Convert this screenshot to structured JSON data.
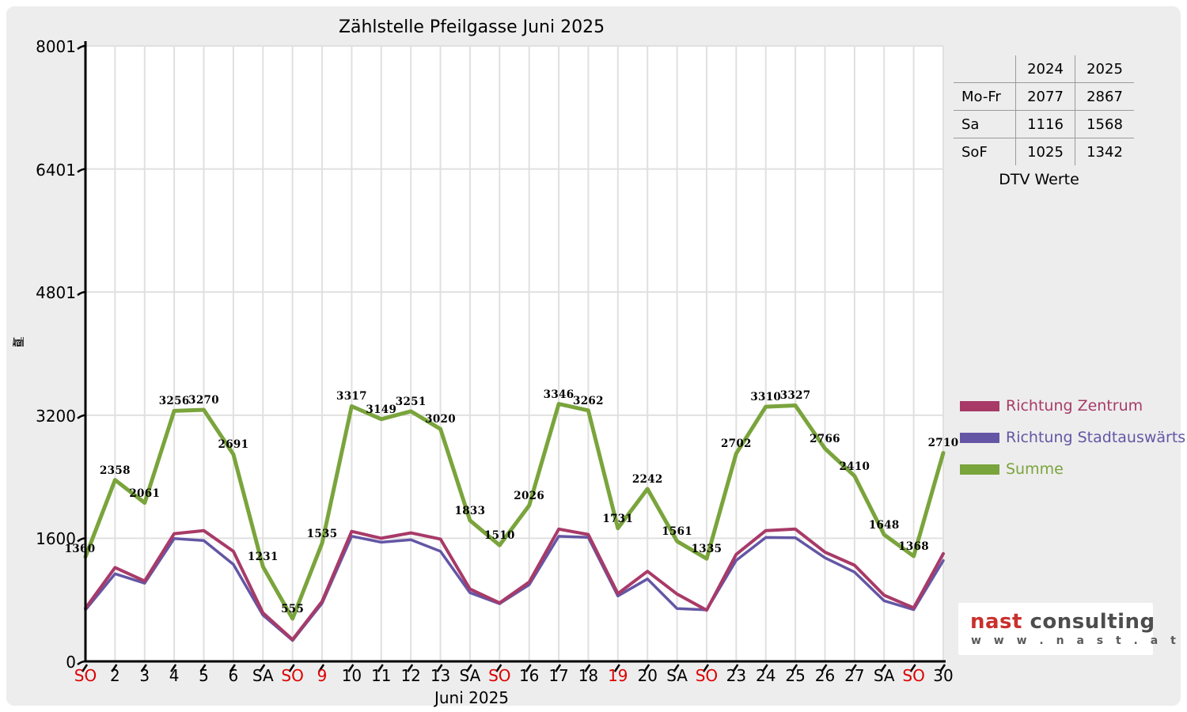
{
  "title": "Zählstelle Pfeilgasse Juni 2025",
  "colors": {
    "card_bg": "#ededed",
    "plot_bg": "#ffffff",
    "grid": "#e0e0e0",
    "axis": "#000000",
    "holiday_red": "#dd0000",
    "zentrum": "#a83a68",
    "stadtauswaerts": "#6456a5",
    "summe": "#7aa43c"
  },
  "dtv_table": {
    "header": [
      "",
      "2024",
      "2025"
    ],
    "rows": [
      [
        "Mo-Fr",
        "2077",
        "2867"
      ],
      [
        "Sa",
        "1116",
        "1568"
      ],
      [
        "SoF",
        "1025",
        "1342"
      ]
    ],
    "caption": "DTV Werte"
  },
  "chart_data": {
    "type": "line",
    "title": "Zählstelle Pfeilgasse Juni 2025",
    "xlabel": "Juni 2025",
    "ylabel": "Anzahl",
    "ylim": [
      0,
      8001
    ],
    "y_ticks": [
      0,
      1600,
      3200,
      4801,
      6401,
      8001
    ],
    "grid": true,
    "legend_position": "right",
    "categories": [
      {
        "label": "SO",
        "red": true
      },
      {
        "label": "2"
      },
      {
        "label": "3"
      },
      {
        "label": "4"
      },
      {
        "label": "5"
      },
      {
        "label": "6"
      },
      {
        "label": "SA"
      },
      {
        "label": "SO",
        "red": true
      },
      {
        "label": "9",
        "red": true
      },
      {
        "label": "10"
      },
      {
        "label": "11"
      },
      {
        "label": "12"
      },
      {
        "label": "13"
      },
      {
        "label": "SA"
      },
      {
        "label": "SO",
        "red": true
      },
      {
        "label": "16"
      },
      {
        "label": "17"
      },
      {
        "label": "18"
      },
      {
        "label": "19",
        "red": true
      },
      {
        "label": "20"
      },
      {
        "label": "SA"
      },
      {
        "label": "SO",
        "red": true
      },
      {
        "label": "23"
      },
      {
        "label": "24"
      },
      {
        "label": "25"
      },
      {
        "label": "26"
      },
      {
        "label": "27"
      },
      {
        "label": "SA"
      },
      {
        "label": "SO",
        "red": true
      },
      {
        "label": "30"
      }
    ],
    "series": [
      {
        "name": "Richtung Zentrum",
        "color": "#a83a68",
        "values": [
          690,
          1220,
          1045,
          1660,
          1700,
          1430,
          630,
          283,
          780,
          1690,
          1600,
          1670,
          1590,
          940,
          760,
          1030,
          1720,
          1650,
          880,
          1170,
          875,
          665,
          1390,
          1700,
          1720,
          1420,
          1250,
          860,
          695,
          1400
        ]
      },
      {
        "name": "Richtung Stadtauswärts",
        "color": "#6456a5",
        "values": [
          670,
          1138,
          1016,
          1596,
          1570,
          1261,
          601,
          272,
          755,
          1627,
          1549,
          1581,
          1430,
          893,
          750,
          996,
          1626,
          1612,
          851,
          1072,
          686,
          670,
          1312,
          1610,
          1607,
          1346,
          1160,
          788,
          673,
          1310
        ]
      },
      {
        "name": "Summe",
        "color": "#7aa43c",
        "labeled": true,
        "values": [
          1360,
          2358,
          2061,
          3256,
          3270,
          2691,
          1231,
          555,
          1535,
          3317,
          3149,
          3251,
          3020,
          1833,
          1510,
          2026,
          3346,
          3262,
          1731,
          2242,
          1561,
          1335,
          2702,
          3310,
          3327,
          2766,
          2410,
          1648,
          1368,
          2710
        ]
      }
    ]
  },
  "logo": {
    "brand": "nast",
    "brand_rest": " consulting",
    "url_text": "w w w . n a s t . a t"
  }
}
